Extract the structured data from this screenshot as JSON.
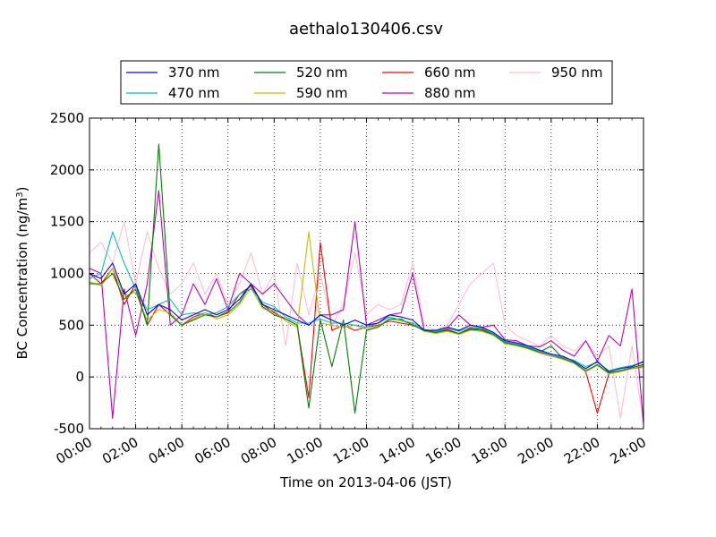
{
  "chart_data": {
    "type": "line",
    "title": "aethalo130406.csv",
    "xlabel": "Time on 2013-04-06 (JST)",
    "ylabel": "BC Concentration (ng/m³)",
    "ylabel_parts": {
      "main": "BC Concentration (ng/m",
      "sup": "3",
      "close": ")"
    },
    "xlim": [
      "00:00",
      "24:00"
    ],
    "ylim": [
      -500,
      2500
    ],
    "x_ticks": [
      "00:00",
      "02:00",
      "04:00",
      "06:00",
      "08:00",
      "10:00",
      "12:00",
      "14:00",
      "16:00",
      "18:00",
      "20:00",
      "22:00",
      "24:00"
    ],
    "y_ticks": [
      -500,
      0,
      500,
      1000,
      1500,
      2000,
      2500
    ],
    "grid": true,
    "legend_position": "top",
    "x_unit": "hours",
    "x": [
      0.0,
      0.5,
      1.0,
      1.5,
      2.0,
      2.5,
      3.0,
      3.5,
      4.0,
      4.5,
      5.0,
      5.5,
      6.0,
      6.5,
      7.0,
      7.5,
      8.0,
      8.5,
      9.0,
      9.5,
      10.0,
      10.5,
      11.0,
      11.5,
      12.0,
      12.5,
      13.0,
      13.5,
      14.0,
      14.5,
      15.0,
      15.5,
      16.0,
      16.5,
      17.0,
      17.5,
      18.0,
      18.5,
      19.0,
      19.5,
      20.0,
      20.5,
      21.0,
      21.5,
      22.0,
      22.5,
      23.0,
      23.5,
      24.0
    ],
    "series": [
      {
        "name": "370 nm",
        "color": "#0000ff",
        "values": [
          1000,
          950,
          1100,
          800,
          900,
          600,
          700,
          650,
          550,
          600,
          650,
          600,
          650,
          750,
          900,
          700,
          650,
          600,
          550,
          500,
          600,
          550,
          500,
          550,
          500,
          520,
          600,
          580,
          550,
          450,
          450,
          480,
          450,
          500,
          480,
          430,
          350,
          330,
          300,
          260,
          220,
          200,
          150,
          80,
          150,
          50,
          80,
          100,
          150
        ]
      },
      {
        "name": "470 nm",
        "color": "#00bfbf",
        "values": [
          950,
          1000,
          1400,
          1100,
          850,
          650,
          700,
          750,
          600,
          620,
          600,
          620,
          680,
          800,
          850,
          720,
          680,
          580,
          520,
          520,
          560,
          520,
          520,
          500,
          480,
          520,
          580,
          550,
          520,
          460,
          440,
          470,
          440,
          480,
          470,
          420,
          340,
          320,
          290,
          250,
          210,
          190,
          160,
          100,
          140,
          60,
          90,
          110,
          140
        ]
      },
      {
        "name": "520 nm",
        "color": "#008000",
        "values": [
          900,
          900,
          1000,
          750,
          850,
          500,
          2250,
          600,
          500,
          550,
          600,
          580,
          620,
          720,
          900,
          680,
          600,
          560,
          500,
          -300,
          550,
          100,
          550,
          -350,
          450,
          480,
          560,
          560,
          500,
          450,
          430,
          450,
          420,
          460,
          450,
          410,
          330,
          310,
          280,
          240,
          300,
          180,
          140,
          60,
          120,
          40,
          60,
          90,
          120
        ]
      },
      {
        "name": "590 nm",
        "color": "#bfbf00",
        "values": [
          920,
          880,
          1050,
          780,
          820,
          550,
          650,
          620,
          500,
          560,
          620,
          560,
          600,
          700,
          860,
          660,
          640,
          540,
          480,
          1400,
          520,
          500,
          480,
          500,
          460,
          490,
          560,
          540,
          510,
          440,
          420,
          440,
          410,
          450,
          440,
          400,
          320,
          300,
          270,
          230,
          200,
          170,
          130,
          50,
          110,
          30,
          50,
          80,
          110
        ]
      },
      {
        "name": "660 nm",
        "color": "#ff0000",
        "values": [
          1000,
          900,
          1050,
          700,
          900,
          500,
          700,
          600,
          500,
          580,
          620,
          580,
          630,
          800,
          880,
          700,
          620,
          560,
          500,
          -200,
          1300,
          450,
          500,
          450,
          480,
          500,
          540,
          520,
          500,
          450,
          430,
          460,
          420,
          470,
          460,
          420,
          330,
          320,
          280,
          240,
          200,
          180,
          130,
          50,
          -350,
          30,
          60,
          80,
          100
        ]
      },
      {
        "name": "880 nm",
        "color": "#bf00bf",
        "values": [
          1050,
          1000,
          -400,
          850,
          400,
          900,
          1800,
          500,
          600,
          900,
          700,
          950,
          650,
          1000,
          900,
          800,
          900,
          750,
          600,
          500,
          600,
          600,
          650,
          1500,
          500,
          550,
          600,
          620,
          1000,
          450,
          440,
          470,
          600,
          500,
          480,
          500,
          360,
          350,
          300,
          290,
          350,
          260,
          200,
          350,
          150,
          400,
          300,
          850,
          -450
        ]
      },
      {
        "name": "950 nm",
        "color": "#ffc0cb",
        "values": [
          1200,
          1300,
          1100,
          1500,
          900,
          1400,
          1050,
          800,
          900,
          1100,
          800,
          1000,
          700,
          900,
          1200,
          800,
          1000,
          300,
          1100,
          600,
          1000,
          500,
          700,
          1200,
          600,
          700,
          650,
          700,
          1100,
          500,
          450,
          500,
          700,
          900,
          1000,
          1100,
          500,
          400,
          350,
          300,
          400,
          300,
          250,
          350,
          200,
          300,
          -400,
          300,
          -450
        ]
      }
    ]
  }
}
